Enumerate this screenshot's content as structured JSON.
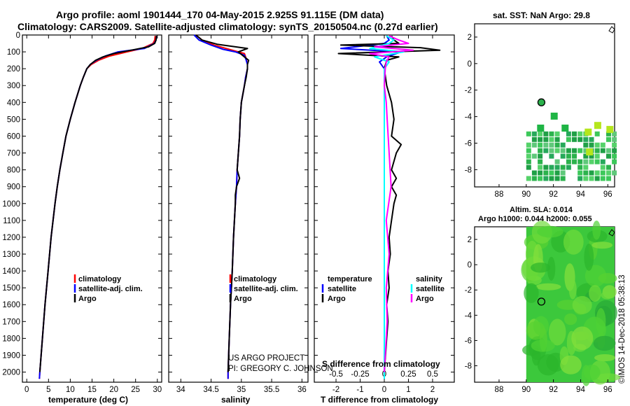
{
  "header": {
    "line1": "Argo profile: aoml 1901444_170 04-May-2015 2.925S 91.115E (DM data)",
    "line2": "Climatology: CARS2009. Satellite-adjusted climatology: synTS_20150504.nc (0.27d earlier)"
  },
  "credits": {
    "project": "US ARGO PROJECT",
    "pi": "PI: GREGORY C. JOHNSON",
    "imos": "©IMOS 14-Dec-2018 05:38:13"
  },
  "colors": {
    "climatology": "#ff0000",
    "satellite": "#0000ff",
    "argo": "#000000",
    "sal_satellite": "#00ffff",
    "sal_argo": "#ff00ff"
  },
  "chart_data": [
    {
      "id": "temperature",
      "type": "line",
      "xlabel": "temperature (deg C)",
      "ylabel": "",
      "xlim": [
        -1,
        31
      ],
      "ylim": [
        2060,
        0
      ],
      "xticks": [
        0,
        5,
        10,
        15,
        20,
        25,
        30
      ],
      "yticks": [
        0,
        100,
        200,
        300,
        400,
        500,
        600,
        700,
        800,
        900,
        1000,
        1100,
        1200,
        1300,
        1400,
        1500,
        1600,
        1700,
        1800,
        1900,
        2000
      ],
      "legend": [
        "climatology",
        "satellite-adj. clim.",
        "Argo"
      ],
      "legend_position": "bottom-right",
      "series": [
        {
          "name": "climatology",
          "color": "#ff0000",
          "depth": [
            5,
            30,
            50,
            80,
            100,
            125,
            150,
            175,
            200,
            250,
            300,
            400,
            500,
            600,
            700,
            800,
            900,
            1000,
            1200,
            1400,
            1600,
            1800,
            2000,
            2040
          ],
          "values": [
            29.5,
            29.4,
            29.0,
            26.5,
            23.0,
            19.0,
            16.5,
            14.8,
            13.8,
            13.0,
            12.3,
            11.1,
            10.0,
            9.0,
            8.3,
            7.6,
            7.0,
            6.5,
            5.6,
            4.9,
            4.2,
            3.6,
            3.0,
            2.9
          ]
        },
        {
          "name": "satellite-adj. clim.",
          "color": "#0000ff",
          "depth": [
            5,
            30,
            50,
            80,
            100,
            125,
            150,
            175,
            200,
            250,
            300,
            400,
            500,
            600,
            700,
            800,
            900,
            1000,
            1200,
            1400,
            1600,
            1800,
            2000,
            2040
          ],
          "values": [
            29.8,
            29.7,
            29.3,
            27.0,
            21.0,
            18.0,
            16.0,
            14.6,
            13.8,
            13.0,
            12.3,
            11.1,
            10.0,
            9.0,
            8.3,
            7.6,
            7.0,
            6.5,
            5.6,
            4.9,
            4.2,
            3.6,
            3.0,
            2.9
          ]
        },
        {
          "name": "Argo",
          "color": "#000000",
          "depth": [
            5,
            30,
            50,
            70,
            90,
            110,
            130,
            150,
            175,
            200,
            250,
            300,
            400,
            500,
            600,
            700,
            800,
            900,
            1000,
            1200,
            1400,
            1600,
            1800,
            2000
          ],
          "values": [
            29.8,
            29.7,
            29.4,
            28.0,
            24.0,
            20.0,
            17.5,
            15.8,
            14.6,
            13.8,
            13.0,
            12.3,
            11.1,
            10.0,
            9.0,
            8.3,
            7.6,
            7.0,
            6.5,
            5.6,
            4.9,
            4.2,
            3.6,
            3.0
          ]
        }
      ]
    },
    {
      "id": "salinity",
      "type": "line",
      "xlabel": "salinity",
      "ylabel": "",
      "xlim": [
        33.8,
        36.1
      ],
      "ylim": [
        2060,
        0
      ],
      "xticks": [
        34,
        34.5,
        35,
        35.5,
        36
      ],
      "legend": [
        "climatology",
        "satellite-adj. clim.",
        "Argo"
      ],
      "legend_position": "bottom-right",
      "series": [
        {
          "name": "climatology",
          "color": "#ff0000",
          "depth": [
            0,
            30,
            60,
            90,
            110,
            140,
            175,
            200,
            250,
            300,
            400,
            500,
            600,
            700,
            800,
            900,
            1000,
            1200,
            1400,
            1600,
            1800,
            2000,
            2040
          ],
          "values": [
            34.25,
            34.35,
            34.55,
            34.85,
            35.05,
            35.08,
            35.1,
            35.1,
            35.07,
            35.05,
            35.0,
            34.98,
            34.97,
            34.95,
            34.93,
            34.92,
            34.9,
            34.87,
            34.85,
            34.82,
            34.8,
            34.78,
            34.78
          ]
        },
        {
          "name": "satellite-adj. clim.",
          "color": "#0000ff",
          "depth": [
            0,
            30,
            60,
            85,
            100,
            120,
            150,
            175,
            200,
            250,
            300,
            400,
            500,
            600,
            700,
            800,
            900,
            1000,
            1200,
            1400,
            1600,
            1800,
            2000,
            2040
          ],
          "values": [
            34.22,
            34.3,
            34.5,
            34.7,
            34.9,
            35.05,
            35.08,
            35.1,
            35.1,
            35.07,
            35.05,
            35.0,
            34.98,
            34.97,
            34.95,
            34.93,
            34.92,
            34.9,
            34.87,
            34.85,
            34.82,
            34.8,
            34.78,
            34.78
          ]
        },
        {
          "name": "Argo",
          "color": "#000000",
          "depth": [
            0,
            30,
            55,
            80,
            100,
            130,
            150,
            175,
            200,
            250,
            300,
            400,
            500,
            600,
            700,
            800,
            850,
            900,
            950,
            1000,
            1200,
            1400,
            1600,
            1800,
            2000
          ],
          "values": [
            34.25,
            34.35,
            34.6,
            35.1,
            34.95,
            35.05,
            35.12,
            35.1,
            35.1,
            35.08,
            35.05,
            35.0,
            34.98,
            34.97,
            34.95,
            34.93,
            34.97,
            34.92,
            34.9,
            34.9,
            34.87,
            34.85,
            34.82,
            34.8,
            34.78
          ]
        }
      ]
    },
    {
      "id": "difference",
      "type": "line",
      "xlabel": "T difference from climatology",
      "top_label": "S difference from climatology",
      "xlim": [
        -2.9,
        2.9
      ],
      "ylim": [
        2060,
        0
      ],
      "xticks": [
        -2,
        -1,
        0,
        1,
        2
      ],
      "top_xlim": [
        -0.725,
        0.725
      ],
      "top_xticks": [
        -0.5,
        -0.25,
        0,
        0.25,
        0.5
      ],
      "legend_left_title": "temperature",
      "legend_right_title": "salinity",
      "legend_left": [
        "satellite",
        "Argo"
      ],
      "legend_right": [
        "satellite",
        "Argo"
      ],
      "legend_position": "bottom",
      "series": [
        {
          "name": "T satellite",
          "color": "#0000ff",
          "depth": [
            5,
            30,
            50,
            80,
            100,
            130,
            160,
            200,
            300,
            400,
            500,
            700,
            900,
            1100,
            1300,
            1500,
            1700,
            1900,
            2040
          ],
          "values": [
            0.1,
            0.2,
            0.0,
            -1.8,
            0.7,
            0.1,
            -0.2,
            0.0,
            0.0,
            0.0,
            0.0,
            0.0,
            0.0,
            0.0,
            0.0,
            0.0,
            0.0,
            0.0,
            0.0
          ]
        },
        {
          "name": "T Argo",
          "color": "#000000",
          "depth": [
            5,
            30,
            50,
            60,
            75,
            90,
            110,
            130,
            150,
            200,
            300,
            400,
            500,
            600,
            650,
            700,
            800,
            850,
            900,
            950,
            1000,
            1100,
            1200,
            1300,
            1400,
            1500,
            1600,
            1700,
            1800,
            1900,
            2000
          ],
          "values": [
            0.3,
            0.4,
            0.6,
            -1.8,
            1.5,
            2.3,
            -1.9,
            0.6,
            0.1,
            0.0,
            0.1,
            0.3,
            0.4,
            0.3,
            0.7,
            0.5,
            0.3,
            0.5,
            0.3,
            0.5,
            0.4,
            0.3,
            0.2,
            0.25,
            0.15,
            0.2,
            0.1,
            0.15,
            0.1,
            0.05,
            0.0
          ]
        },
        {
          "name": "S satellite",
          "color": "#00ffff",
          "scale": "salinity",
          "depth": [
            5,
            30,
            50,
            80,
            100,
            130,
            160,
            200,
            300,
            400,
            500,
            700,
            900,
            1100,
            1300,
            1500,
            1700,
            1900,
            2040
          ],
          "values": [
            0.02,
            0.1,
            0.05,
            -0.15,
            0.2,
            -0.1,
            0.05,
            0.0,
            0.0,
            0.0,
            0.0,
            0.0,
            0.0,
            0.0,
            0.0,
            0.0,
            0.0,
            0.0,
            0.0
          ]
        },
        {
          "name": "S Argo",
          "color": "#ff00ff",
          "scale": "salinity",
          "depth": [
            5,
            30,
            50,
            70,
            90,
            110,
            130,
            160,
            200,
            300,
            400,
            500,
            700,
            900,
            1100,
            1300,
            1500,
            1700,
            1900,
            2000
          ],
          "values": [
            0.05,
            0.15,
            0.25,
            -0.1,
            0.3,
            -0.15,
            0.05,
            0.02,
            0.01,
            0.0,
            0.02,
            0.03,
            0.05,
            0.07,
            0.02,
            0.05,
            0.02,
            0.03,
            0.01,
            0.0
          ]
        }
      ]
    }
  ],
  "map_sst": {
    "title": "sat. SST: NaN Argo: 29.8",
    "xticks": [
      88,
      90,
      92,
      94,
      96
    ],
    "yticks": [
      2,
      0,
      -2,
      -4,
      -6,
      -8
    ],
    "xlim": [
      86.2,
      96.5
    ],
    "ylim": [
      -9.3,
      3.0
    ],
    "argo_position": {
      "lon": 91.115,
      "lat": -2.925
    }
  },
  "map_sla": {
    "title1": "Altim. SLA: 0.014",
    "title2": "Argo h1000: 0.044 h2000: 0.055",
    "xticks": [
      88,
      90,
      92,
      94,
      96
    ],
    "yticks": [
      2,
      0,
      -2,
      -4,
      -6,
      -8
    ],
    "xlim": [
      86.2,
      96.5
    ],
    "ylim": [
      -9.3,
      3.0
    ],
    "argo_position": {
      "lon": 91.115,
      "lat": -2.925
    }
  }
}
